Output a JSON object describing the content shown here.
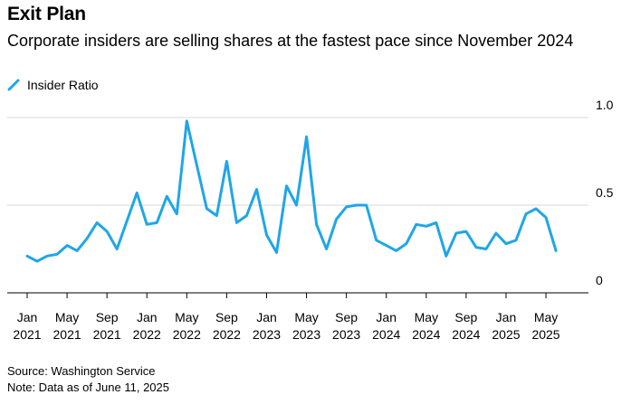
{
  "header": {
    "title": "Exit Plan",
    "subtitle": "Corporate insiders are selling shares at the fastest pace since November 2024"
  },
  "footer": {
    "source": "Source: Washington Service",
    "note": "Note: Data as of June 11, 2025"
  },
  "colors": {
    "series": "#1fa6e8",
    "grid": "#d9d9d9",
    "axis": "#000000"
  },
  "chart_data": {
    "type": "line",
    "title": "Exit Plan",
    "subtitle": "Corporate insiders are selling shares at the fastest pace since November 2024",
    "xlabel": "",
    "ylabel": "",
    "ylim": [
      0,
      1.0
    ],
    "yticks": [
      0,
      0.5,
      1.0
    ],
    "ytick_labels": [
      "0",
      "0.5",
      "1.0"
    ],
    "grid": true,
    "legend_position": "top-left",
    "xtick_labels": [
      [
        "Jan",
        "2021"
      ],
      [
        "May",
        "2021"
      ],
      [
        "Sep",
        "2021"
      ],
      [
        "Jan",
        "2022"
      ],
      [
        "May",
        "2022"
      ],
      [
        "Sep",
        "2022"
      ],
      [
        "Jan",
        "2023"
      ],
      [
        "May",
        "2023"
      ],
      [
        "Sep",
        "2023"
      ],
      [
        "Jan",
        "2024"
      ],
      [
        "May",
        "2024"
      ],
      [
        "Sep",
        "2024"
      ],
      [
        "Jan",
        "2025"
      ],
      [
        "May",
        "2025"
      ]
    ],
    "xtick_dates": [
      "2021-01",
      "2021-05",
      "2021-09",
      "2022-01",
      "2022-05",
      "2022-09",
      "2023-01",
      "2023-05",
      "2023-09",
      "2024-01",
      "2024-05",
      "2024-09",
      "2025-01",
      "2025-05"
    ],
    "x": [
      "2021-01",
      "2021-02",
      "2021-03",
      "2021-04",
      "2021-05",
      "2021-06",
      "2021-07",
      "2021-08",
      "2021-09",
      "2021-10",
      "2021-11",
      "2021-12",
      "2022-01",
      "2022-02",
      "2022-03",
      "2022-04",
      "2022-05",
      "2022-06",
      "2022-07",
      "2022-08",
      "2022-09",
      "2022-10",
      "2022-11",
      "2022-12",
      "2023-01",
      "2023-02",
      "2023-03",
      "2023-04",
      "2023-05",
      "2023-06",
      "2023-07",
      "2023-08",
      "2023-09",
      "2023-10",
      "2023-11",
      "2023-12",
      "2024-01",
      "2024-02",
      "2024-03",
      "2024-04",
      "2024-05",
      "2024-06",
      "2024-07",
      "2024-08",
      "2024-09",
      "2024-10",
      "2024-11",
      "2024-12",
      "2025-01",
      "2025-02",
      "2025-03",
      "2025-04",
      "2025-05",
      "2025-06"
    ],
    "series": [
      {
        "name": "Insider Ratio",
        "values": [
          0.21,
          0.18,
          0.21,
          0.22,
          0.27,
          0.24,
          0.31,
          0.4,
          0.35,
          0.25,
          0.41,
          0.57,
          0.39,
          0.4,
          0.55,
          0.45,
          0.98,
          0.73,
          0.48,
          0.44,
          0.75,
          0.4,
          0.44,
          0.59,
          0.33,
          0.23,
          0.61,
          0.5,
          0.89,
          0.39,
          0.25,
          0.42,
          0.49,
          0.5,
          0.5,
          0.3,
          0.27,
          0.24,
          0.28,
          0.39,
          0.38,
          0.4,
          0.21,
          0.34,
          0.35,
          0.26,
          0.25,
          0.34,
          0.28,
          0.3,
          0.45,
          0.48,
          0.43,
          0.24
        ]
      }
    ]
  }
}
